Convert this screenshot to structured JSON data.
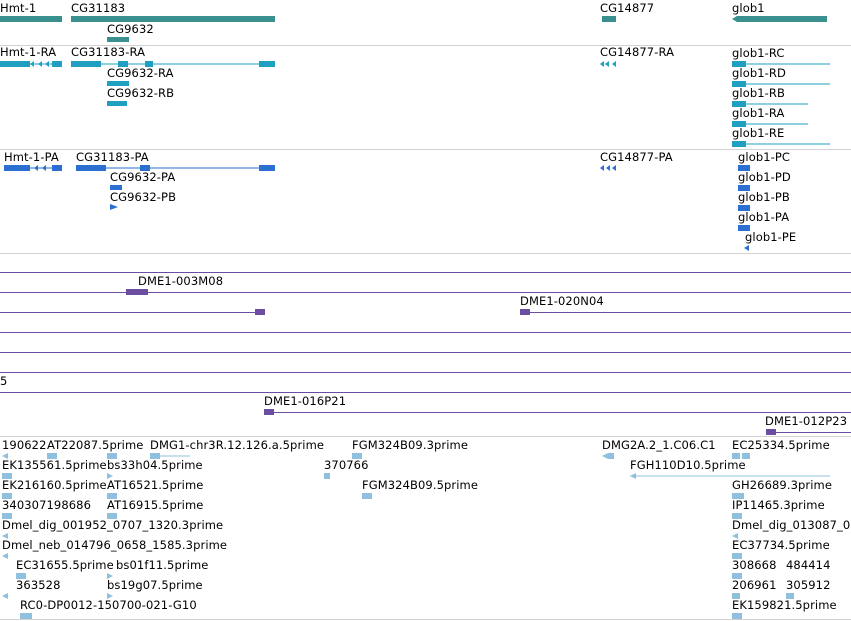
{
  "tracks": {
    "genes": {
      "color": "#3a8f8f",
      "labels": [
        "Hmt-1",
        "CG31183",
        "CG9632",
        "CG14877",
        "glob1"
      ]
    },
    "transcripts": {
      "color": "#1fa0c1",
      "labels": [
        "Hmt-1-RA",
        "CG31183-RA",
        "CG9632-RA",
        "CG9632-RB",
        "CG14877-RA",
        "glob1-RC",
        "glob1-RD",
        "glob1-RB",
        "glob1-RA",
        "glob1-RE"
      ]
    },
    "proteins": {
      "color": "#2b6fd1",
      "labels": [
        "Hmt-1-PA",
        "CG31183-PA",
        "CG9632-PA",
        "CG9632-PB",
        "CG14877-PA",
        "glob1-PC",
        "glob1-PD",
        "glob1-PB",
        "glob1-PA",
        "glob1-PE"
      ]
    },
    "bac_clones": {
      "color": "#6b4ea0",
      "labels": [
        "DME1-003M08",
        "DME1-020N04",
        "5",
        "DME1-016P21",
        "DME1-012P23"
      ]
    },
    "ests": {
      "color": "#8fc0de",
      "labels": [
        "190622",
        "AT22087.5prime",
        "DMG1-chr3R.12.126.a.5prime",
        "FGM324B09.3prime",
        "DMG2A.2_1.C06.C1",
        "EC25334.5prime",
        "EK135561.5prime",
        "bs33h04.5prime",
        "370766",
        "FGH110D10.5prime",
        "EK216160.5prime",
        "AT16521.5prime",
        "FGM324B09.5prime",
        "GH26689.3prime",
        "340307198686",
        "AT16915.5prime",
        "IP11465.3prime",
        "Dmel_dig_001952_0707_1320.3prime",
        "Dmel_dig_013087_0",
        "Dmel_neb_014796_0658_1585.3prime",
        "EC37734.5prime",
        "EC31655.5prime",
        "bs01f11.5prime",
        "308668",
        "484414",
        "363528",
        "bs19g07.5prime",
        "206961",
        "305912",
        "RC0-DP0012-150700-021-G10",
        "EK159821.5prime"
      ]
    }
  }
}
